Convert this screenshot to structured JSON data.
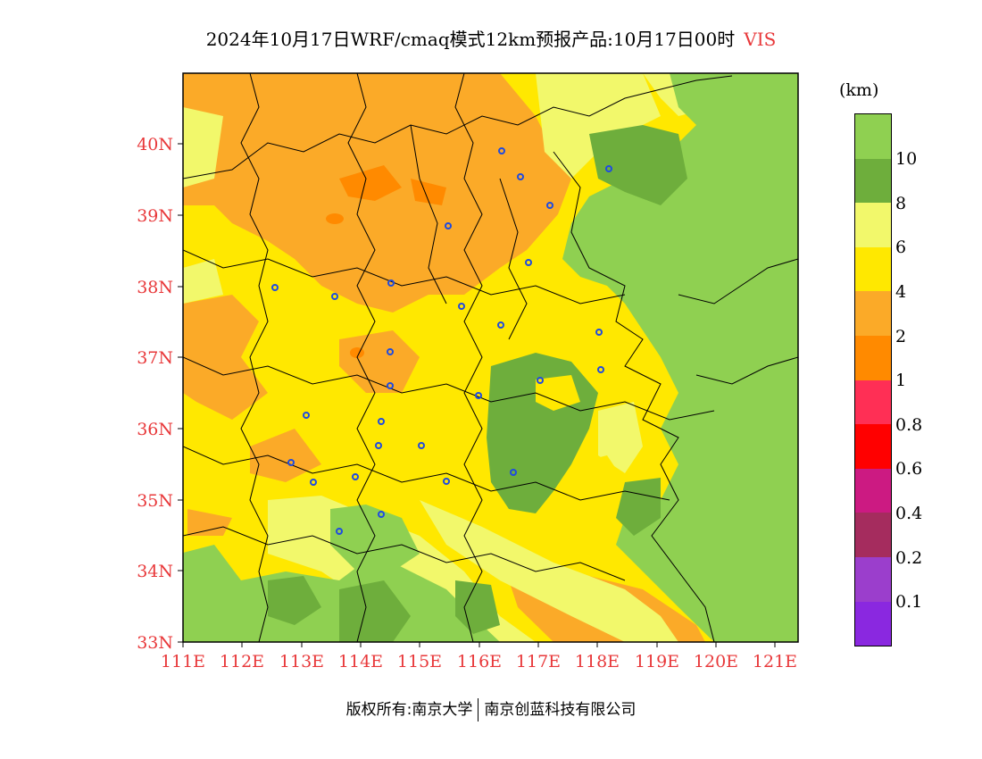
{
  "title": {
    "main": "2024年10月17日WRF/cmaq模式12km预报产品:10月17日00时",
    "variable": "VIS"
  },
  "map": {
    "lon_labels": [
      "111E",
      "112E",
      "113E",
      "114E",
      "115E",
      "116E",
      "117E",
      "118E",
      "119E",
      "120E",
      "121E"
    ],
    "lat_labels": [
      "40N",
      "39N",
      "38N",
      "37N",
      "36N",
      "35N",
      "34N",
      "33N"
    ]
  },
  "legend": {
    "unit": "(km)",
    "swatch_colors": [
      "#8fd051",
      "#6eae3c",
      "#f2f86b",
      "#ffe800",
      "#fbaa28",
      "#ff8a00",
      "#ff2f55",
      "#ff0000",
      "#cc1a82",
      "#a52c5e",
      "#9b3ecc",
      "#8a28e0"
    ],
    "labels": [
      "10",
      "8",
      "6",
      "4",
      "2",
      "1",
      "0.8",
      "0.6",
      "0.4",
      "0.2",
      "0.1"
    ]
  },
  "footer": {
    "left": "版权所有:南京大学",
    "right": "南京创蓝科技有限公司"
  }
}
